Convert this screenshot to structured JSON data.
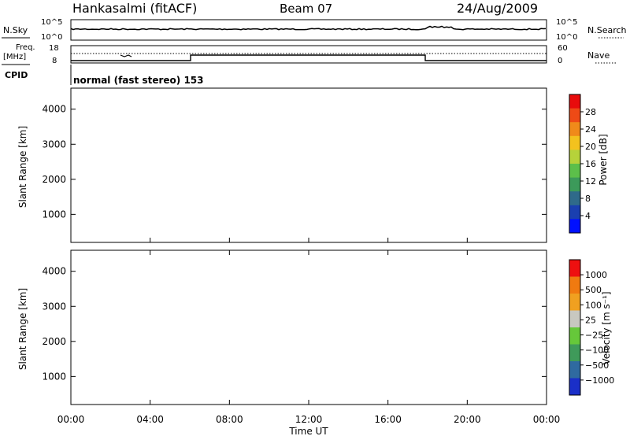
{
  "header": {
    "station": "Hankasalmi (fitACF)",
    "beam": "Beam 07",
    "date": "24/Aug/2009"
  },
  "status_panel": {
    "nsky_label": "N.Sky",
    "nsky_ticks": [
      "10^5",
      "10^0"
    ],
    "nsearch_label": "N.Search",
    "nsearch_ticks": [
      "10^5",
      "10^0"
    ],
    "freq_label_1": "Freq.",
    "freq_label_2": "[MHz]",
    "freq_ticks": [
      "18",
      "8"
    ],
    "nave_label": "Nave",
    "nave_ticks": [
      "60",
      "0"
    ],
    "cpid_label": "CPID",
    "cpid_text": "normal (fast stereo) 153"
  },
  "chart_data": [
    {
      "type": "heatmap",
      "name": "power",
      "ylabel": "Slant Range [km]",
      "y_ticks": [
        "4000",
        "3000",
        "2000",
        "1000"
      ],
      "y_tick_values": [
        4000,
        3000,
        2000,
        1000
      ],
      "ylim": [
        200,
        4600
      ],
      "colorbar": {
        "label": "Power [dB]",
        "ticks": [
          "28",
          "24",
          "20",
          "16",
          "12",
          "8",
          "4"
        ],
        "colors": [
          "#0010ff",
          "#1a3fb0",
          "#2f6a8a",
          "#3c9a5a",
          "#5cbf4a",
          "#b6d23a",
          "#f3c21e",
          "#f08a1a",
          "#ee4a16",
          "#e80c0c"
        ]
      }
    },
    {
      "type": "heatmap",
      "name": "velocity",
      "ylabel": "Slant Range [km]",
      "y_ticks": [
        "4000",
        "3000",
        "2000",
        "1000"
      ],
      "y_tick_values": [
        4000,
        3000,
        2000,
        1000
      ],
      "ylim": [
        200,
        4600
      ],
      "xlabel": "Time UT",
      "x_ticks": [
        "00:00",
        "04:00",
        "08:00",
        "12:00",
        "16:00",
        "20:00",
        "00:00"
      ],
      "x_tick_hours": [
        0,
        4,
        8,
        12,
        16,
        20,
        24
      ],
      "colorbar": {
        "label": "Velocity [m s⁻¹]",
        "ticks": [
          "1000",
          "500",
          "100",
          "25",
          "−25",
          "−100",
          "−500",
          "−1000"
        ],
        "colors": [
          "#1a2fc8",
          "#2f6aa0",
          "#3f9a5a",
          "#66c83a",
          "#c8c8c0",
          "#f0a020",
          "#f07a10",
          "#ee1010"
        ]
      }
    }
  ]
}
